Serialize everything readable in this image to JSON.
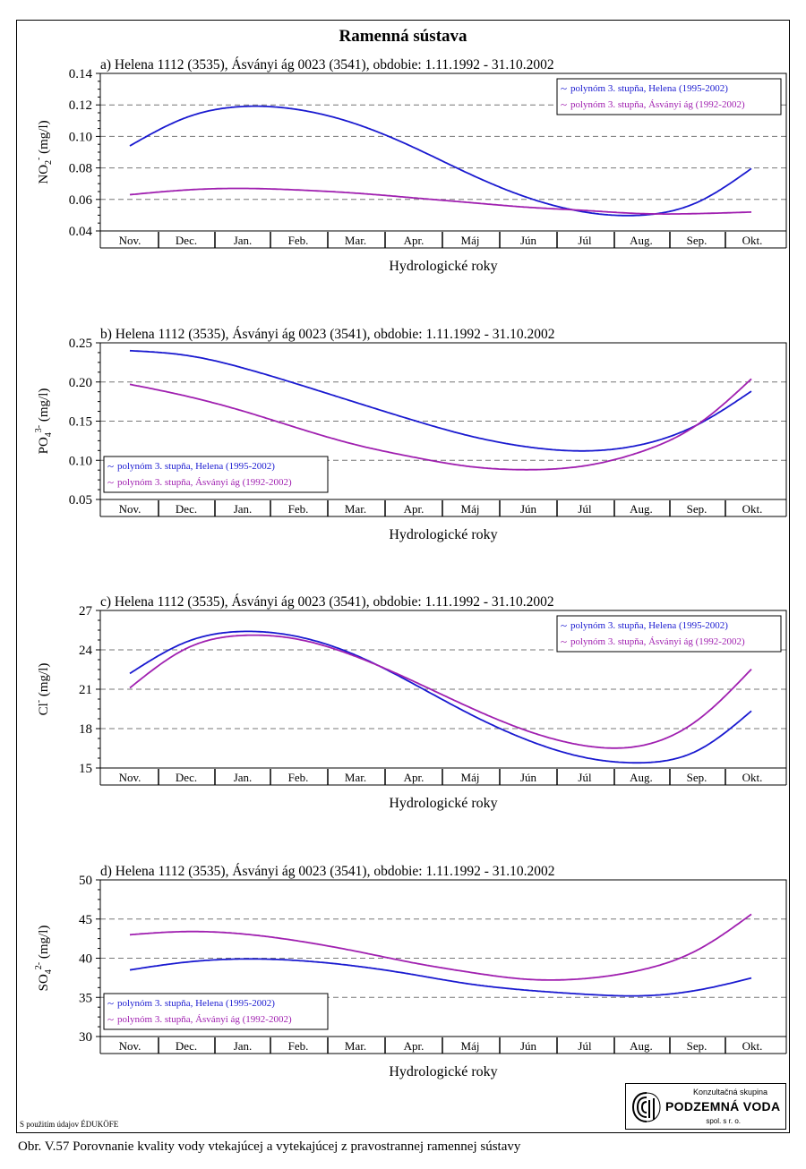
{
  "title": "Ramenná sústava",
  "months": [
    "Nov.",
    "Dec.",
    "Jan.",
    "Feb.",
    "Mar.",
    "Apr.",
    "Máj",
    "Jún",
    "Júl",
    "Aug.",
    "Sep.",
    "Okt."
  ],
  "xlabel": "Hydrologické roky",
  "colors": {
    "helena": "#1a1ad0",
    "asvanyi": "#a020b0"
  },
  "charts": [
    {
      "heading": "a) Helena 1112 (3535), Ásványi ág 0023 (3541), obdobie: 1.11.1992 - 31.10.2002",
      "ylabel": "NO2⁻ (mg/l)",
      "ylabel_main": "NO",
      "ylabel_sub": "2",
      "ylabel_sup": "-",
      "ylabel_unit": "(mg/l)",
      "ylim": [
        0.04,
        0.14
      ],
      "yticks": [
        "0.04",
        "0.06",
        "0.08",
        "0.10",
        "0.12",
        "0.14"
      ],
      "legend_position": "top-right",
      "legend": [
        "polynóm 3. stupňa, Helena (1995-2002)",
        "polynóm 3. stupňa, Ásványi ág (1992-2002)"
      ]
    },
    {
      "heading": "b) Helena 1112 (3535), Ásványi ág 0023 (3541), obdobie: 1.11.1992 - 31.10.2002",
      "ylabel": "PO4³⁻ (mg/l)",
      "ylabel_main": "PO",
      "ylabel_sub": "4",
      "ylabel_sup": "3-",
      "ylabel_unit": "(mg/l)",
      "ylim": [
        0.05,
        0.25
      ],
      "yticks": [
        "0.05",
        "0.10",
        "0.15",
        "0.20",
        "0.25"
      ],
      "legend_position": "bottom-left",
      "legend": [
        "polynóm 3. stupňa, Helena (1995-2002)",
        "polynóm 3. stupňa, Ásványi ág (1992-2002)"
      ]
    },
    {
      "heading": "c) Helena 1112 (3535), Ásványi ág 0023 (3541), obdobie: 1.11.1992 - 31.10.2002",
      "ylabel": "Cl⁻ (mg/l)",
      "ylabel_main": "Cl",
      "ylabel_sub": "",
      "ylabel_sup": "-",
      "ylabel_unit": "(mg/l)",
      "ylim": [
        15,
        27
      ],
      "yticks": [
        "15",
        "18",
        "21",
        "24",
        "27"
      ],
      "legend_position": "top-right",
      "legend": [
        "polynóm 3. stupňa, Helena (1995-2002)",
        "polynóm 3. stupňa, Ásványi ág (1992-2002)"
      ]
    },
    {
      "heading": "d) Helena 1112 (3535), Ásványi ág 0023 (3541), obdobie: 1.11.1992 - 31.10.2002",
      "ylabel": "SO4²⁻ (mg/l)",
      "ylabel_main": "SO",
      "ylabel_sub": "4",
      "ylabel_sup": "2-",
      "ylabel_unit": "(mg/l)",
      "ylim": [
        30,
        50
      ],
      "yticks": [
        "30",
        "35",
        "40",
        "45",
        "50"
      ],
      "legend_position": "bottom-left",
      "legend": [
        "polynóm 3. stupňa, Helena (1995-2002)",
        "polynóm 3. stupňa, Ásványi ág (1992-2002)"
      ]
    }
  ],
  "chart_data": [
    {
      "type": "line",
      "title": "a) Helena 1112 (3535), Ásványi ág 0023 (3541), obdobie: 1.11.1992 - 31.10.2002",
      "xlabel": "Hydrologické roky",
      "ylabel": "NO2- (mg/l)",
      "categories": [
        "Nov.",
        "Dec.",
        "Jan.",
        "Feb.",
        "Mar.",
        "Apr.",
        "Máj",
        "Jún",
        "Júl",
        "Aug.",
        "Sep.",
        "Okt."
      ],
      "ylim": [
        0.04,
        0.14
      ],
      "grid": "horizontal dashed",
      "series": [
        {
          "name": "polynóm 3. stupňa, Helena (1995-2002)",
          "values": [
            0.094,
            0.112,
            0.119,
            0.117,
            0.108,
            0.093,
            0.076,
            0.061,
            0.052,
            0.05,
            0.058,
            0.08
          ]
        },
        {
          "name": "polynóm 3. stupňa, Ásványi ág (1992-2002)",
          "values": [
            0.063,
            0.066,
            0.067,
            0.066,
            0.064,
            0.061,
            0.058,
            0.055,
            0.053,
            0.051,
            0.051,
            0.052
          ]
        }
      ]
    },
    {
      "type": "line",
      "title": "b) Helena 1112 (3535), Ásványi ág 0023 (3541), obdobie: 1.11.1992 - 31.10.2002",
      "xlabel": "Hydrologické roky",
      "ylabel": "PO43- (mg/l)",
      "categories": [
        "Nov.",
        "Dec.",
        "Jan.",
        "Feb.",
        "Mar.",
        "Apr.",
        "Máj",
        "Jún",
        "Júl",
        "Aug.",
        "Sep.",
        "Okt."
      ],
      "ylim": [
        0.05,
        0.25
      ],
      "grid": "horizontal dashed",
      "series": [
        {
          "name": "polynóm 3. stupňa, Helena (1995-2002)",
          "values": [
            0.24,
            0.234,
            0.218,
            0.197,
            0.174,
            0.151,
            0.131,
            0.117,
            0.112,
            0.12,
            0.145,
            0.189
          ]
        },
        {
          "name": "polynóm 3. stupňa, Ásványi ág (1992-2002)",
          "values": [
            0.197,
            0.182,
            0.163,
            0.141,
            0.12,
            0.104,
            0.092,
            0.088,
            0.093,
            0.111,
            0.145,
            0.205
          ]
        }
      ]
    },
    {
      "type": "line",
      "title": "c) Helena 1112 (3535), Ásványi ág 0023 (3541), obdobie: 1.11.1992 - 31.10.2002",
      "xlabel": "Hydrologické roky",
      "ylabel": "Cl- (mg/l)",
      "categories": [
        "Nov.",
        "Dec.",
        "Jan.",
        "Feb.",
        "Mar.",
        "Apr.",
        "Máj",
        "Jún",
        "Júl",
        "Aug.",
        "Sep.",
        "Okt."
      ],
      "ylim": [
        15,
        27
      ],
      "grid": "horizontal dashed",
      "series": [
        {
          "name": "polynóm 3. stupňa, Helena (1995-2002)",
          "values": [
            22.2,
            24.6,
            25.4,
            25.0,
            23.6,
            21.4,
            19.1,
            17.1,
            15.8,
            15.4,
            16.3,
            19.4
          ]
        },
        {
          "name": "polynóm 3. stupňa, Ásványi ág (1992-2002)",
          "values": [
            21.1,
            24.1,
            25.1,
            24.8,
            23.5,
            21.6,
            19.6,
            17.8,
            16.7,
            16.7,
            18.6,
            22.6
          ]
        }
      ]
    },
    {
      "type": "line",
      "title": "d) Helena 1112 (3535), Ásványi ág 0023 (3541), obdobie: 1.11.1992 - 31.10.2002",
      "xlabel": "Hydrologické roky",
      "ylabel": "SO42- (mg/l)",
      "categories": [
        "Nov.",
        "Dec.",
        "Jan.",
        "Feb.",
        "Mar.",
        "Apr.",
        "Máj",
        "Jún",
        "Júl",
        "Aug.",
        "Sep.",
        "Okt."
      ],
      "ylim": [
        30,
        50
      ],
      "grid": "horizontal dashed",
      "series": [
        {
          "name": "polynóm 3. stupňa, Helena (1995-2002)",
          "values": [
            38.5,
            39.5,
            39.9,
            39.7,
            39.0,
            37.9,
            36.7,
            35.9,
            35.4,
            35.2,
            35.9,
            37.5
          ]
        },
        {
          "name": "polynóm 3. stupňa, Ásványi ág (1992-2002)",
          "values": [
            43.0,
            43.4,
            43.1,
            42.2,
            40.9,
            39.4,
            38.2,
            37.3,
            37.4,
            38.5,
            41.0,
            45.7
          ]
        }
      ]
    }
  ],
  "logo": {
    "top": "Konzultačná skupina",
    "main": "PODZEMNÁ VODA",
    "sub": "spol. s r. o."
  },
  "source_note": "S použitím údajov ÉDUKÖFE",
  "caption": "Obr. V.57 Porovnanie kvality vody vtekajúcej a vytekajúcej z pravostrannej ramennej sústavy"
}
